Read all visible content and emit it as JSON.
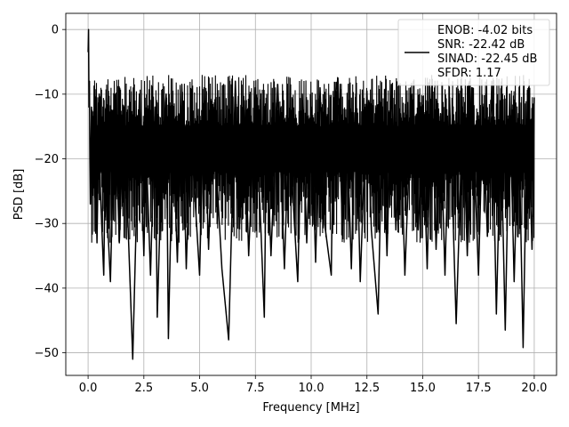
{
  "chart_data": {
    "type": "line",
    "xlabel": "Frequency [MHz]",
    "ylabel": "PSD [dB]",
    "xlim": [
      -1.0,
      21.0
    ],
    "ylim": [
      -53.5,
      2.5
    ],
    "x_ticks": [
      0.0,
      2.5,
      5.0,
      7.5,
      10.0,
      12.5,
      15.0,
      17.5,
      20.0
    ],
    "x_tick_labels": [
      "0.0",
      "2.5",
      "5.0",
      "7.5",
      "10.0",
      "12.5",
      "15.0",
      "17.5",
      "20.0"
    ],
    "y_ticks": [
      0,
      -10,
      -20,
      -30,
      -40,
      -50
    ],
    "y_tick_labels": [
      "0",
      "−10",
      "−20",
      "−30",
      "−40",
      "−50"
    ],
    "grid": true,
    "legend_position": "top-right",
    "legend_lines": [
      "ENOB: -4.02 bits",
      "SNR: -22.42 dB",
      "SINAD: -22.45 dB",
      "SFDR: 1.17"
    ],
    "series_color": "#000000",
    "series": [
      {
        "x": [
          0.0,
          0.02,
          0.04,
          0.06,
          0.08,
          0.1,
          0.15,
          0.2,
          0.3,
          0.4,
          0.5,
          0.55,
          0.7,
          0.8,
          0.85,
          1.0,
          1.2,
          1.4,
          1.6,
          1.9,
          2.0,
          2.3,
          2.5,
          2.6,
          2.8,
          3.0,
          3.1,
          3.3,
          3.5,
          3.6,
          3.8,
          4.0,
          4.2,
          4.4,
          4.6,
          5.0,
          5.2,
          5.4,
          5.6,
          6.0,
          6.3,
          6.6,
          6.8,
          7.0,
          7.2,
          7.5,
          7.9,
          8.0,
          8.2,
          8.5,
          8.8,
          9.0,
          9.4,
          9.6,
          9.8,
          10.0,
          10.2,
          10.4,
          10.6,
          10.9,
          11.0,
          11.2,
          11.4,
          11.6,
          11.8,
          12.0,
          12.2,
          12.5,
          12.7,
          13.0,
          13.2,
          13.4,
          13.6,
          13.8,
          14.0,
          14.2,
          14.5,
          14.8,
          15.0,
          15.2,
          15.4,
          15.6,
          15.8,
          16.0,
          16.2,
          16.5,
          16.8,
          17.0,
          17.2,
          17.5,
          17.7,
          17.9,
          18.1,
          18.3,
          18.5,
          18.7,
          18.9,
          19.1,
          19.3,
          19.5,
          19.7,
          19.9,
          20.0
        ],
        "y": [
          -3.5,
          0.0,
          -12.0,
          -8.0,
          -20.0,
          -27.0,
          -12.0,
          -22.0,
          -15.0,
          -33.0,
          -10.0,
          -25.0,
          -38.0,
          -12.0,
          -28.0,
          -39.0,
          -10.0,
          -33.0,
          -12.0,
          -41.0,
          -51.0,
          -10.0,
          -35.0,
          -18.0,
          -38.0,
          -12.0,
          -44.5,
          -20.0,
          -10.0,
          -47.8,
          -15.0,
          -36.0,
          -8.5,
          -37.0,
          -15.0,
          -38.0,
          -9.0,
          -34.0,
          -12.0,
          -37.0,
          -48.0,
          -8.0,
          -30.0,
          -11.0,
          -35.0,
          -9.0,
          -44.5,
          -15.0,
          -35.0,
          -8.5,
          -37.0,
          -15.0,
          -39.0,
          -10.0,
          -33.0,
          -12.0,
          -36.0,
          -9.0,
          -30.0,
          -38.0,
          -12.0,
          -7.5,
          -31.0,
          -14.0,
          -37.0,
          -10.0,
          -39.0,
          -9.5,
          -31.0,
          -44.0,
          -12.0,
          -35.0,
          -8.5,
          -31.0,
          -13.0,
          -38.0,
          -10.0,
          -31.0,
          -15.0,
          -37.0,
          -9.0,
          -34.0,
          -13.0,
          -38.0,
          -10.5,
          -45.5,
          -12.0,
          -35.0,
          -9.0,
          -38.0,
          -12.0,
          -32.0,
          -8.0,
          -44.0,
          -15.0,
          -46.5,
          -10.0,
          -39.0,
          -13.0,
          -49.2,
          -9.5,
          -34.0,
          -10.5
        ]
      }
    ]
  }
}
